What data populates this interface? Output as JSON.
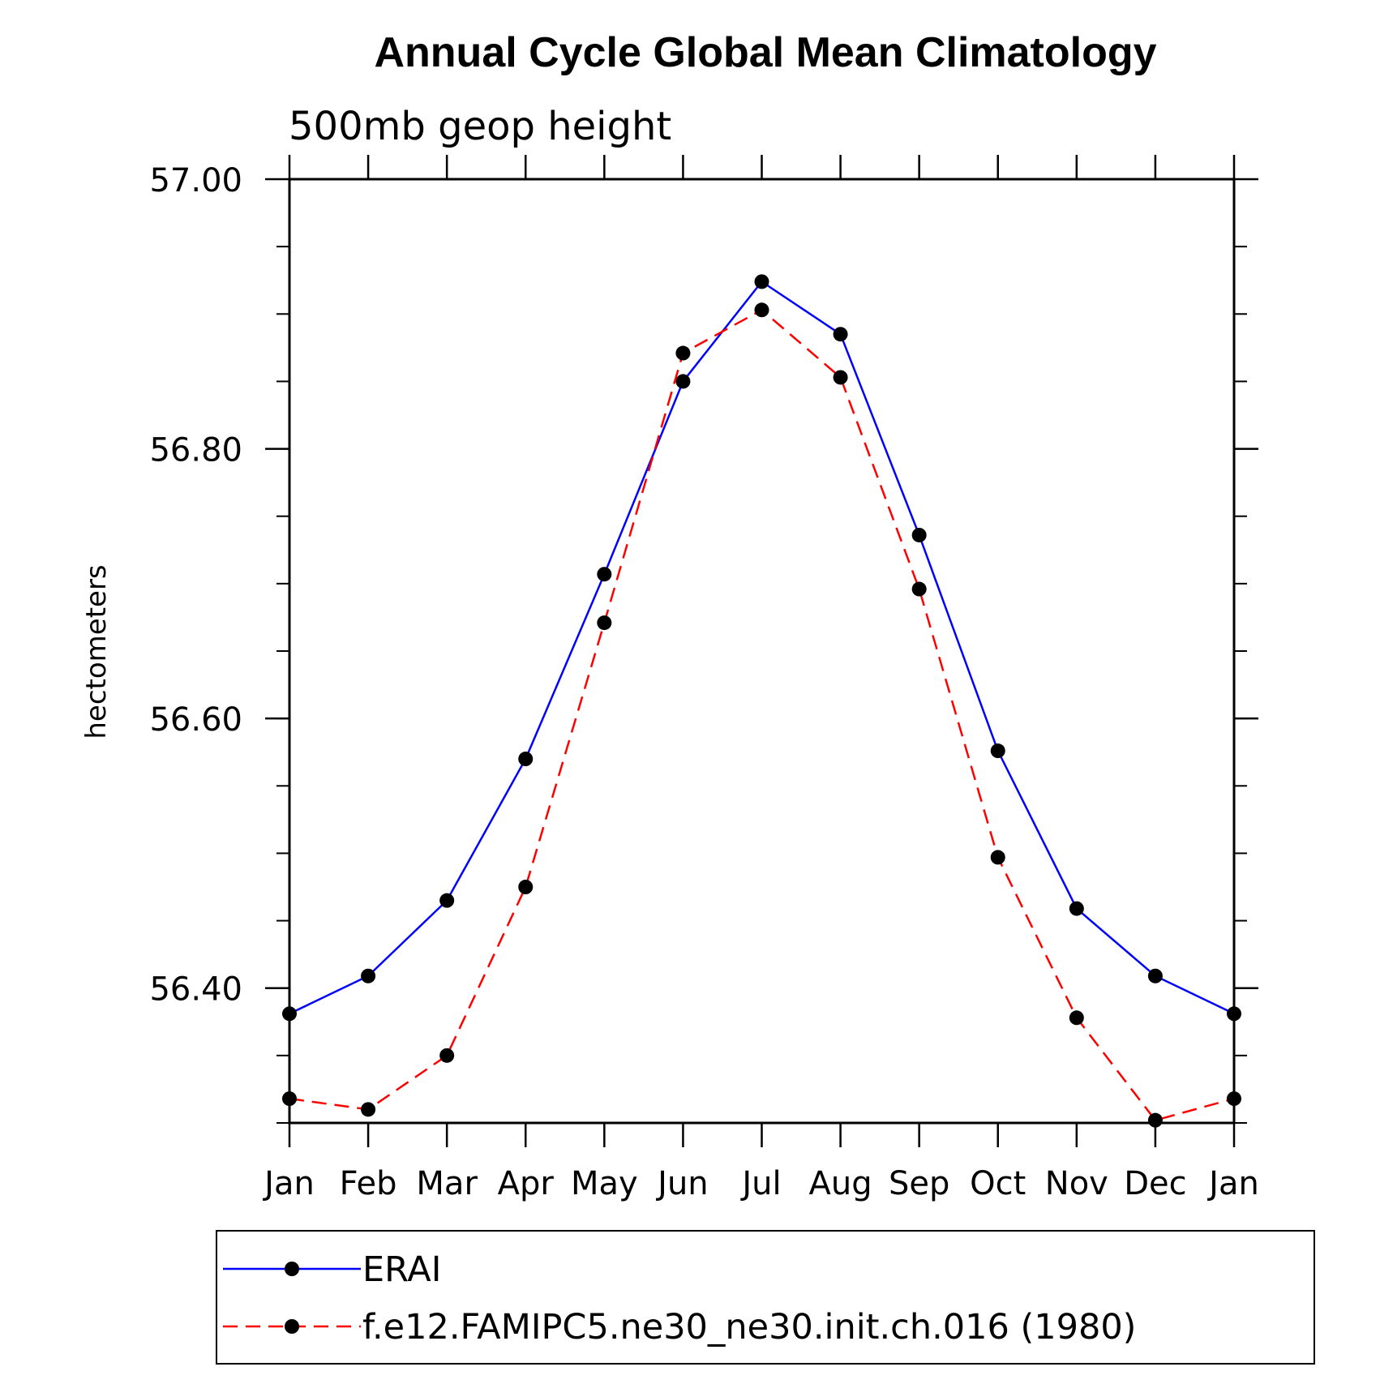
{
  "chart_data": {
    "type": "line",
    "title": "Annual Cycle Global Mean Climatology",
    "subtitle": "500mb geop height",
    "ylabel": "hectometers",
    "xlabel": "",
    "categories": [
      "Jan",
      "Feb",
      "Mar",
      "Apr",
      "May",
      "Jun",
      "Jul",
      "Aug",
      "Sep",
      "Oct",
      "Nov",
      "Dec",
      "Jan"
    ],
    "ylim": [
      56.3,
      57.0
    ],
    "yticks_major": [
      57.0,
      56.8,
      56.6,
      56.4
    ],
    "ytick_labels": [
      "57.00",
      "56.80",
      "56.60",
      "56.40"
    ],
    "yticks_minor_step": 0.05,
    "grid": false,
    "legend_position": "bottom",
    "series": [
      {
        "name": "ERAI",
        "color": "#0000ff",
        "dash": "solid",
        "marker": "filled-circle",
        "values": [
          56.381,
          56.409,
          56.465,
          56.57,
          56.707,
          56.85,
          56.924,
          56.885,
          56.736,
          56.576,
          56.459,
          56.409,
          56.381
        ]
      },
      {
        "name": "f.e12.FAMIPC5.ne30_ne30.init.ch.016 (1980)",
        "color": "#ff0000",
        "dash": "dashed",
        "marker": "filled-circle",
        "values": [
          56.318,
          56.31,
          56.35,
          56.475,
          56.671,
          56.871,
          56.903,
          56.853,
          56.696,
          56.497,
          56.378,
          56.302,
          56.318
        ]
      }
    ]
  }
}
